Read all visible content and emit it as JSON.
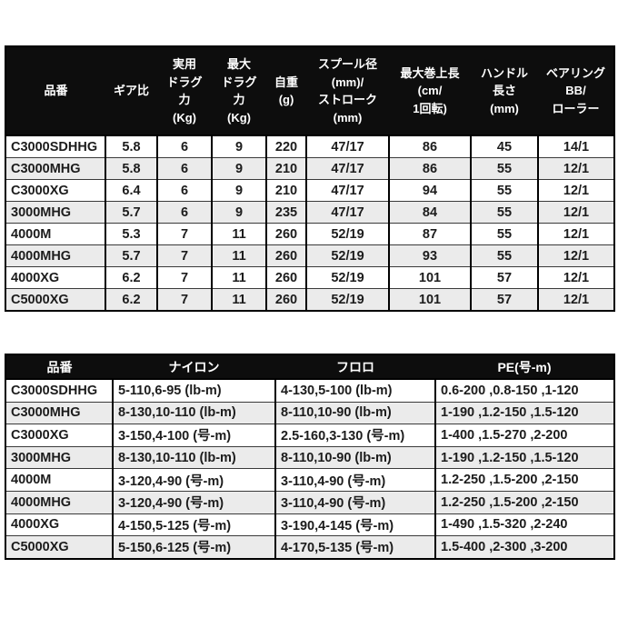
{
  "colors": {
    "header_bg": "#0d0d0d",
    "header_text": "#ffffff",
    "row_base": "#ffffff",
    "row_alt": "#ebebeb",
    "border": "#000000",
    "cell_text": "#1c1c1c"
  },
  "spec_table": {
    "headers": [
      "品番",
      "ギア比",
      "実用\nドラグ\n力\n(Kg)",
      "最大\nドラグ\n力\n(Kg)",
      "自重\n(g)",
      "スプール径\n(mm)/\nストローク\n(mm)",
      "最大巻上長\n(cm/\n1回転)",
      "ハンドル\n長さ\n(mm)",
      "ベアリング\nBB/\nローラー"
    ],
    "rows": [
      [
        "C3000SDHHG",
        "5.8",
        "6",
        "9",
        "220",
        "47/17",
        "86",
        "45",
        "14/1"
      ],
      [
        "C3000MHG",
        "5.8",
        "6",
        "9",
        "210",
        "47/17",
        "86",
        "55",
        "12/1"
      ],
      [
        "C3000XG",
        "6.4",
        "6",
        "9",
        "210",
        "47/17",
        "94",
        "55",
        "12/1"
      ],
      [
        "3000MHG",
        "5.7",
        "6",
        "9",
        "235",
        "47/17",
        "84",
        "55",
        "12/1"
      ],
      [
        "4000M",
        "5.3",
        "7",
        "11",
        "260",
        "52/19",
        "87",
        "55",
        "12/1"
      ],
      [
        "4000MHG",
        "5.7",
        "7",
        "11",
        "260",
        "52/19",
        "93",
        "55",
        "12/1"
      ],
      [
        "4000XG",
        "6.2",
        "7",
        "11",
        "260",
        "52/19",
        "101",
        "57",
        "12/1"
      ],
      [
        "C5000XG",
        "6.2",
        "7",
        "11",
        "260",
        "52/19",
        "101",
        "57",
        "12/1"
      ]
    ]
  },
  "line_table": {
    "headers": [
      "品番",
      "ナイロン",
      "フロロ",
      "PE(号-m)"
    ],
    "rows": [
      [
        "C3000SDHHG",
        "5-110,6-95 (lb-m)",
        "4-130,5-100 (lb-m)",
        "0.6-200 ,0.8-150 ,1-120"
      ],
      [
        "C3000MHG",
        "8-130,10-110 (lb-m)",
        "8-110,10-90 (lb-m)",
        "1-190 ,1.2-150 ,1.5-120"
      ],
      [
        "C3000XG",
        "3-150,4-100 (号-m)",
        "2.5-160,3-130 (号-m)",
        "1-400 ,1.5-270 ,2-200"
      ],
      [
        "3000MHG",
        "8-130,10-110 (lb-m)",
        "8-110,10-90 (lb-m)",
        "1-190 ,1.2-150 ,1.5-120"
      ],
      [
        "4000M",
        "3-120,4-90 (号-m)",
        "3-110,4-90 (号-m)",
        "1.2-250 ,1.5-200 ,2-150"
      ],
      [
        "4000MHG",
        "3-120,4-90 (号-m)",
        "3-110,4-90 (号-m)",
        "1.2-250 ,1.5-200 ,2-150"
      ],
      [
        "4000XG",
        "4-150,5-125 (号-m)",
        "3-190,4-145 (号-m)",
        "1-490 ,1.5-320 ,2-240"
      ],
      [
        "C5000XG",
        "5-150,6-125 (号-m)",
        "4-170,5-135 (号-m)",
        "1.5-400 ,2-300 ,3-200"
      ]
    ]
  }
}
